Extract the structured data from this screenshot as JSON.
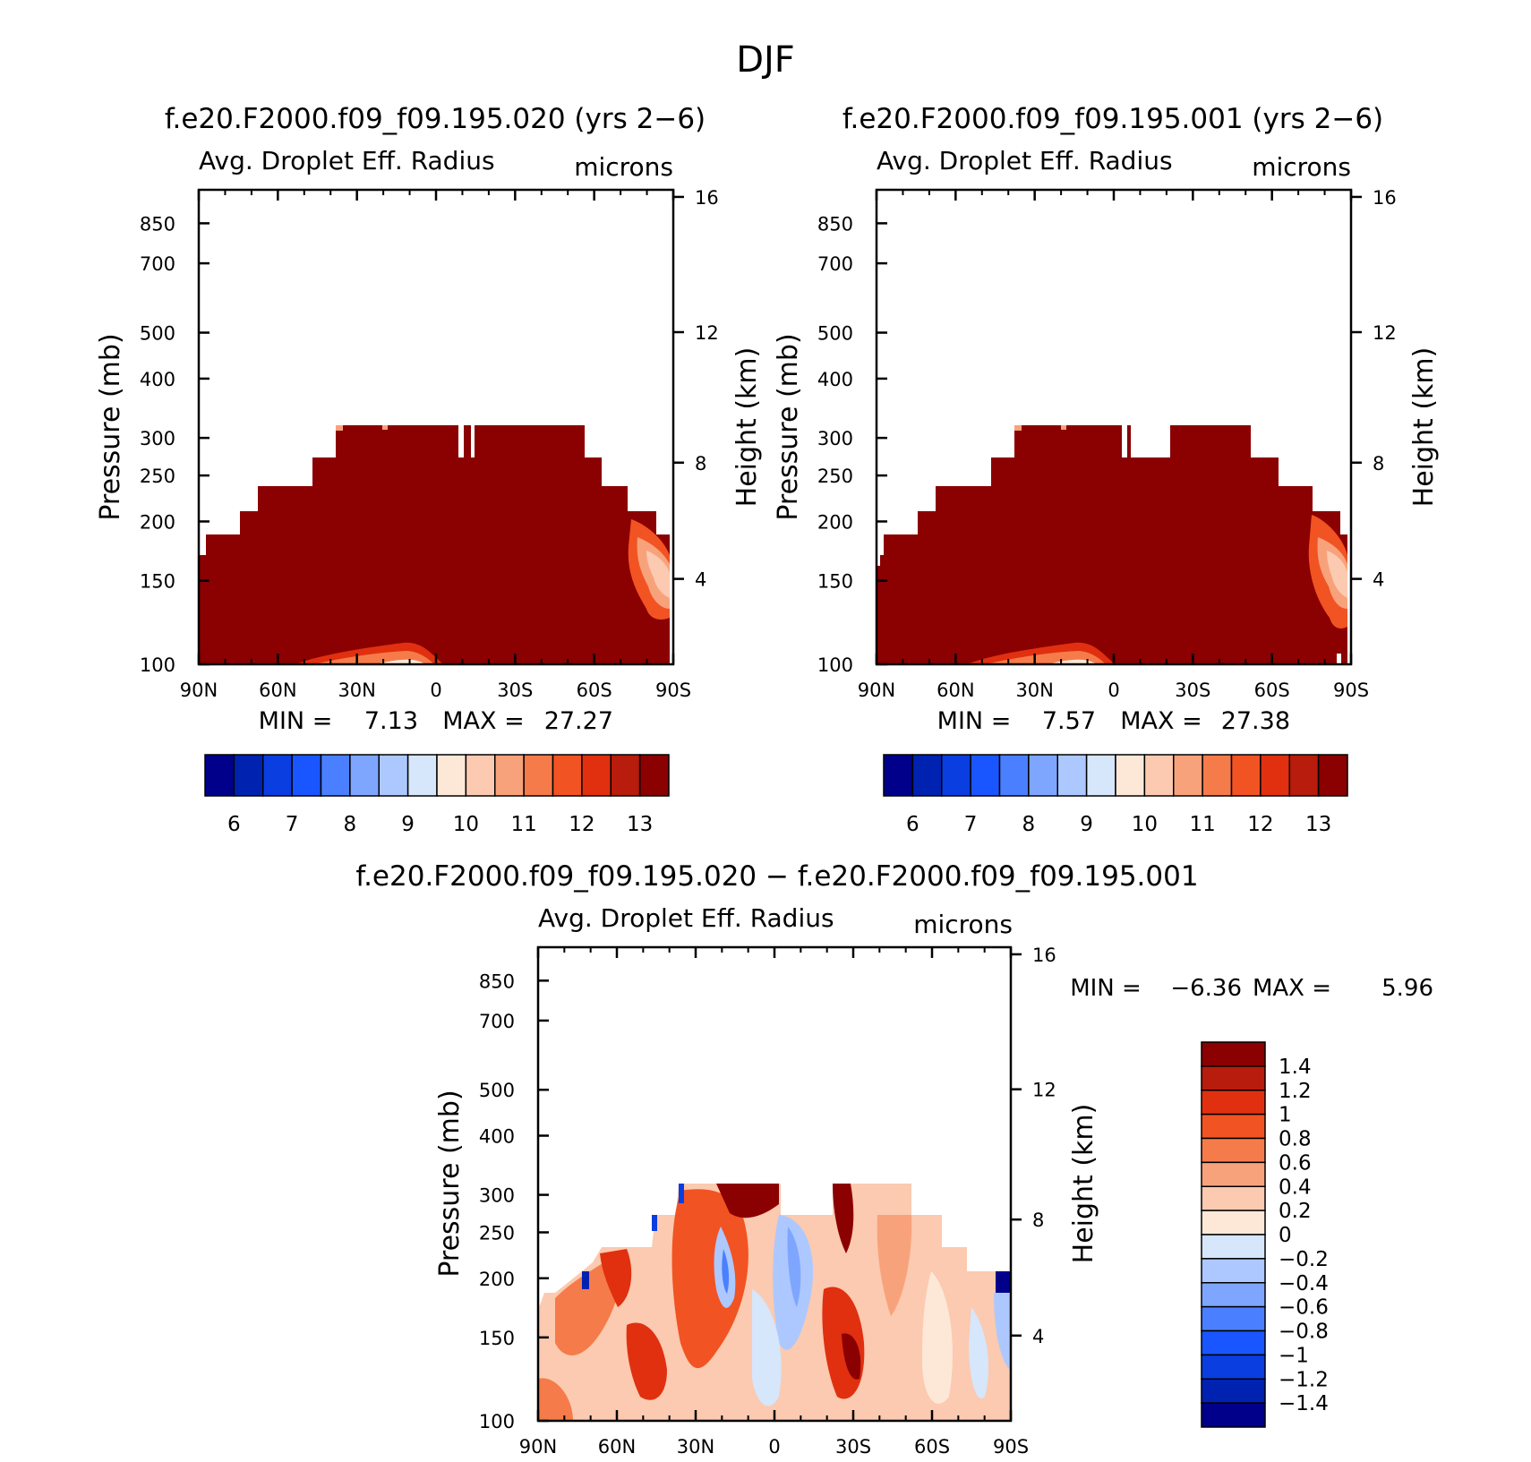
{
  "figure_title": "DJF",
  "colors": {
    "abs_scale": [
      "#00008b",
      "#0022b0",
      "#0a3ee0",
      "#1a56ff",
      "#4a80ff",
      "#7fa6ff",
      "#adc8ff",
      "#d6e6fb",
      "#fde8d8",
      "#fbcab0",
      "#f8a27c",
      "#f67b4a",
      "#f25322",
      "#e03010",
      "#b71c0c",
      "#8b0000"
    ],
    "diff_scale": [
      "#00008b",
      "#0022b0",
      "#0a3ee0",
      "#1a56ff",
      "#4a80ff",
      "#7fa6ff",
      "#adc8ff",
      "#d6e6fb",
      "#fde8d8",
      "#fbcab0",
      "#f8a27c",
      "#f67b4a",
      "#f25322",
      "#e03010",
      "#b71c0c",
      "#8b0000"
    ]
  },
  "chart_data": [
    {
      "type": "heatmap",
      "title": "f.e20.F2000.f09_f09.195.020 (yrs 2−6)",
      "variable": "Avg. Droplet Eff. Radius",
      "units": "microns",
      "ylabel": "Pressure (mb)",
      "ylabel_right": "Height (km)",
      "x_ticks": [
        "90N",
        "60N",
        "30N",
        "0",
        "30S",
        "60S",
        "90S"
      ],
      "y_ticks": [
        "100",
        "150",
        "200",
        "250",
        "300",
        "400",
        "500",
        "700",
        "850"
      ],
      "y_right_ticks": [
        "16",
        "12",
        "8",
        "4"
      ],
      "ylim": [
        1000,
        100
      ],
      "log_scale_y": true,
      "min_label": "MIN =",
      "min_value": "7.13",
      "max_label": "MAX =",
      "max_value": "27.27",
      "colorbar_labels": [
        "6",
        "7",
        "8",
        "9",
        "10",
        "11",
        "12",
        "13"
      ],
      "colorbar_levels": [
        5.5,
        6,
        6.5,
        7,
        7.5,
        8,
        8.5,
        9,
        9.5,
        10,
        10.5,
        11,
        11.5,
        12,
        12.5,
        13
      ]
    },
    {
      "type": "heatmap",
      "title": "f.e20.F2000.f09_f09.195.001 (yrs 2−6)",
      "variable": "Avg. Droplet Eff. Radius",
      "units": "microns",
      "ylabel": "Pressure (mb)",
      "ylabel_right": "Height (km)",
      "x_ticks": [
        "90N",
        "60N",
        "30N",
        "0",
        "30S",
        "60S",
        "90S"
      ],
      "y_ticks": [
        "100",
        "150",
        "200",
        "250",
        "300",
        "400",
        "500",
        "700",
        "850"
      ],
      "y_right_ticks": [
        "16",
        "12",
        "8",
        "4"
      ],
      "ylim": [
        1000,
        100
      ],
      "log_scale_y": true,
      "min_label": "MIN =",
      "min_value": "7.57",
      "max_label": "MAX =",
      "max_value": "27.38",
      "colorbar_labels": [
        "6",
        "7",
        "8",
        "9",
        "10",
        "11",
        "12",
        "13"
      ],
      "colorbar_levels": [
        5.5,
        6,
        6.5,
        7,
        7.5,
        8,
        8.5,
        9,
        9.5,
        10,
        10.5,
        11,
        11.5,
        12,
        12.5,
        13
      ]
    },
    {
      "type": "heatmap",
      "title": "f.e20.F2000.f09_f09.195.020 − f.e20.F2000.f09_f09.195.001",
      "variable": "Avg. Droplet Eff. Radius",
      "units": "microns",
      "ylabel": "Pressure (mb)",
      "ylabel_right": "Height (km)",
      "x_ticks": [
        "90N",
        "60N",
        "30N",
        "0",
        "30S",
        "60S",
        "90S"
      ],
      "y_ticks": [
        "100",
        "150",
        "200",
        "250",
        "300",
        "400",
        "500",
        "700",
        "850"
      ],
      "y_right_ticks": [
        "16",
        "12",
        "8",
        "4"
      ],
      "ylim": [
        1000,
        100
      ],
      "log_scale_y": true,
      "min_label": "MIN =",
      "min_value": "−6.36",
      "max_label": "MAX =",
      "max_value": "5.96",
      "colorbar_labels": [
        "1.4",
        "1.2",
        "1",
        "0.8",
        "0.6",
        "0.4",
        "0.2",
        "0",
        "−0.2",
        "−0.4",
        "−0.6",
        "−0.8",
        "−1",
        "−1.2",
        "−1.4"
      ],
      "colorbar_levels": [
        -1.4,
        -1.2,
        -1,
        -0.8,
        -0.6,
        -0.4,
        -0.2,
        0,
        0.2,
        0.4,
        0.6,
        0.8,
        1,
        1.2,
        1.4
      ]
    }
  ]
}
